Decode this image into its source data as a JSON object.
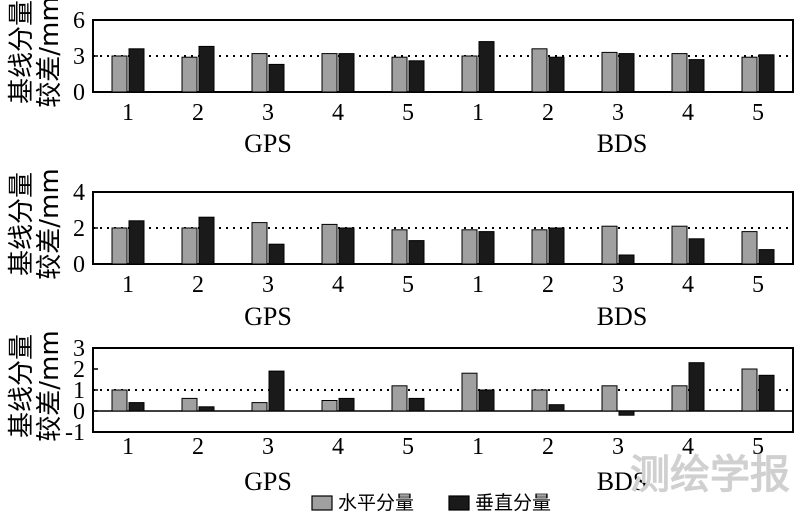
{
  "chart_data": [
    {
      "type": "bar",
      "ylabel_lines": [
        "基线分量",
        "较差/mm"
      ],
      "ylim": [
        0,
        6
      ],
      "yticks": [
        0,
        3,
        6
      ],
      "reference_line": 3,
      "categories": [
        "1",
        "2",
        "3",
        "4",
        "5",
        "1",
        "2",
        "3",
        "4",
        "5"
      ],
      "groups": [
        {
          "label": "GPS",
          "start": 0,
          "end": 4
        },
        {
          "label": "BDS",
          "start": 5,
          "end": 9
        }
      ],
      "series": [
        {
          "name": "水平分量",
          "color": "#a0a0a0",
          "values": [
            3.0,
            2.9,
            3.2,
            3.2,
            2.9,
            3.0,
            3.6,
            3.3,
            3.2,
            2.9
          ]
        },
        {
          "name": "垂直分量",
          "color": "#1a1a1a",
          "values": [
            3.6,
            3.8,
            2.3,
            3.2,
            2.6,
            4.2,
            2.9,
            3.2,
            2.7,
            3.1
          ]
        }
      ]
    },
    {
      "type": "bar",
      "ylabel_lines": [
        "基线分量",
        "较差/mm"
      ],
      "ylim": [
        0,
        4
      ],
      "yticks": [
        0,
        2,
        4
      ],
      "reference_line": 2,
      "categories": [
        "1",
        "2",
        "3",
        "4",
        "5",
        "1",
        "2",
        "3",
        "4",
        "5"
      ],
      "groups": [
        {
          "label": "GPS",
          "start": 0,
          "end": 4
        },
        {
          "label": "BDS",
          "start": 5,
          "end": 9
        }
      ],
      "series": [
        {
          "name": "水平分量",
          "color": "#a0a0a0",
          "values": [
            2.0,
            2.0,
            2.3,
            2.2,
            1.9,
            1.9,
            1.9,
            2.1,
            2.1,
            1.8
          ]
        },
        {
          "name": "垂直分量",
          "color": "#1a1a1a",
          "values": [
            2.4,
            2.6,
            1.1,
            2.0,
            1.3,
            1.8,
            2.0,
            0.5,
            1.4,
            0.8
          ]
        }
      ]
    },
    {
      "type": "bar",
      "ylabel_lines": [
        "基线分量",
        "较差/mm"
      ],
      "ylim": [
        -1,
        3
      ],
      "yticks": [
        -1,
        0,
        1,
        2,
        3
      ],
      "reference_line": 1,
      "categories": [
        "1",
        "2",
        "3",
        "4",
        "5",
        "1",
        "2",
        "3",
        "4",
        "5"
      ],
      "groups": [
        {
          "label": "GPS",
          "start": 0,
          "end": 4
        },
        {
          "label": "BDS",
          "start": 5,
          "end": 9
        }
      ],
      "series": [
        {
          "name": "水平分量",
          "color": "#a0a0a0",
          "values": [
            1.0,
            0.6,
            0.4,
            0.5,
            1.2,
            1.8,
            1.0,
            1.2,
            1.2,
            2.0
          ]
        },
        {
          "name": "垂直分量",
          "color": "#1a1a1a",
          "values": [
            0.4,
            0.2,
            1.9,
            0.6,
            0.6,
            1.0,
            0.3,
            -0.2,
            2.3,
            1.7
          ]
        }
      ]
    }
  ],
  "legend": [
    {
      "label": "水平分量",
      "color": "#a0a0a0"
    },
    {
      "label": "垂直分量",
      "color": "#1a1a1a"
    }
  ],
  "watermark": "测绘学报"
}
